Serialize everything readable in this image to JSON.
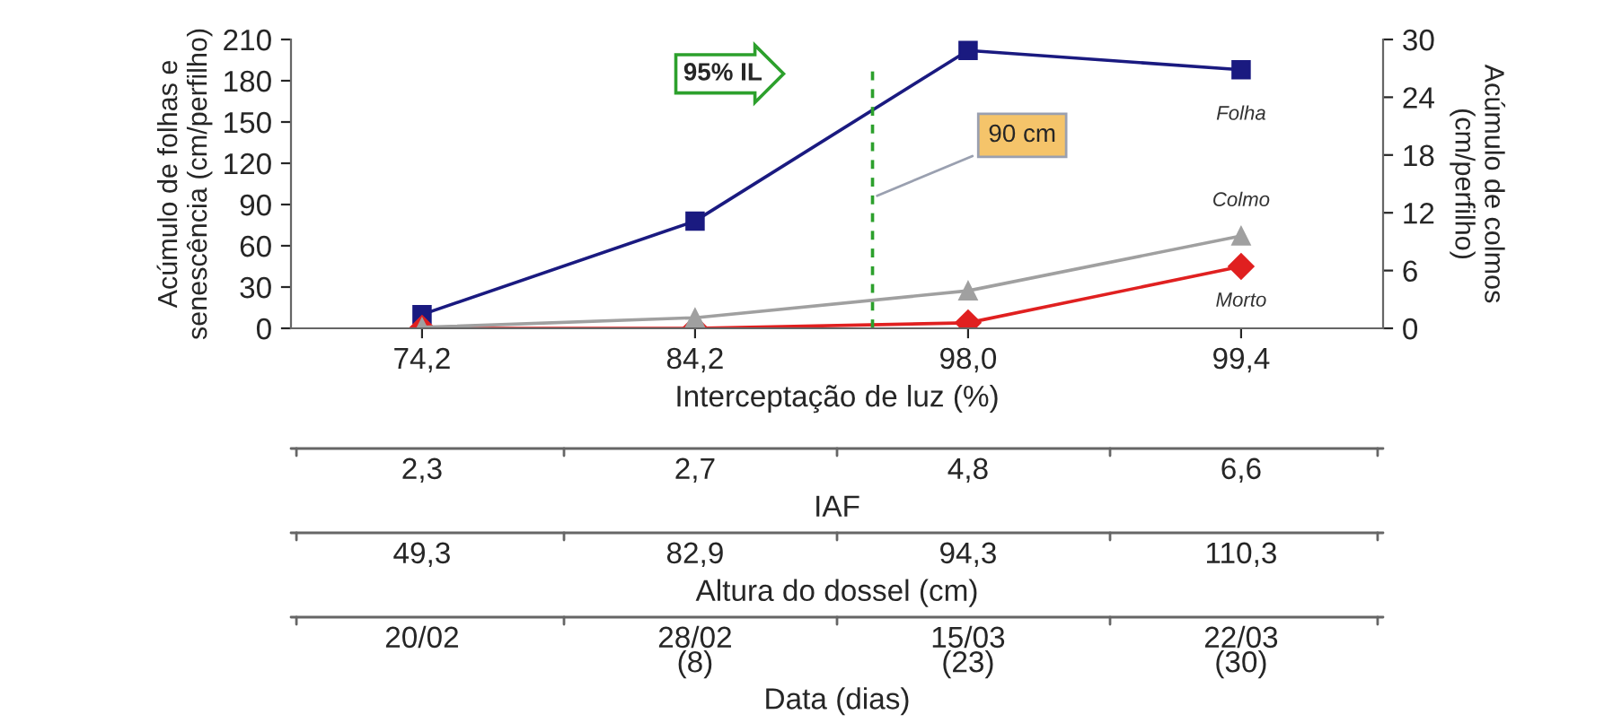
{
  "chart_data": {
    "type": "line",
    "categories": [
      "74,2",
      "84,2",
      "98,0",
      "99,4"
    ],
    "xlabel": "Interceptação de luz (%)",
    "ylabel": "Acúmulo de folhas e\nsenescência (cm/perfilho)",
    "y2label": "Acúmulo de colmos\n(cm/perfilho)",
    "ylim": [
      0,
      210
    ],
    "yticks": [
      0,
      30,
      60,
      90,
      120,
      150,
      180,
      210
    ],
    "y2lim": [
      0,
      30
    ],
    "y2ticks": [
      0,
      6,
      12,
      18,
      24,
      30
    ],
    "series": [
      {
        "name": "Folha",
        "color": "#1a1a80",
        "marker": "square",
        "values": [
          10,
          78,
          202,
          188
        ]
      },
      {
        "name": "Colmo",
        "color": "#a0a0a0",
        "marker": "triangle",
        "axis": "y2",
        "values": [
          0.1,
          1.1,
          3.9,
          9.6
        ]
      },
      {
        "name": "Morto",
        "color": "#e02020",
        "marker": "diamond",
        "values": [
          0,
          0,
          4,
          45
        ]
      }
    ],
    "annotations": [
      "95% IL",
      "90 cm",
      "2,3",
      "2,7",
      "4,8",
      "6,6",
      "IAF",
      "49,3",
      "82,9",
      "94,3",
      "110,3",
      "Altura do dossel (cm)",
      "20/02",
      "28/02\n(8)",
      "15/03\n(23)",
      "22/03\n(30)",
      "Data (dias)"
    ],
    "legend": false,
    "grid": false
  }
}
